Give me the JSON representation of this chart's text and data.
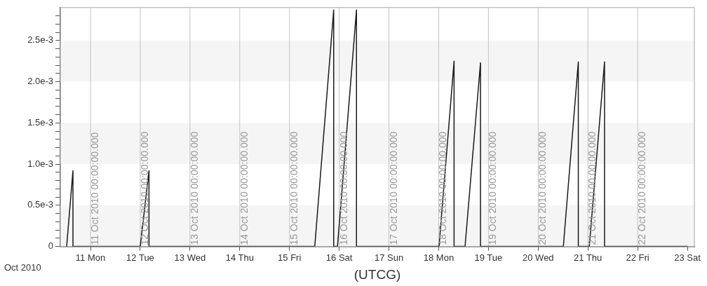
{
  "chart_data": {
    "type": "line",
    "xlabel": "(UTCG)",
    "annotations": [
      "Oct 2010"
    ],
    "x": [
      "2010-10-10T12:29",
      "2010-10-10T15:32",
      "2010-10-10T15:32",
      "2010-10-12T00:00",
      "2010-10-12T04:13",
      "2010-10-12T04:13",
      "2010-10-15T12:12",
      "2010-10-15T21:20",
      "2010-10-15T21:20",
      "2010-10-15T23:10",
      "2010-10-16T08:20",
      "2010-10-16T08:20",
      "2010-10-18T00:10",
      "2010-10-18T07:25",
      "2010-10-18T07:25",
      "2010-10-18T12:43",
      "2010-10-18T20:10",
      "2010-10-18T20:10",
      "2010-10-20T12:09",
      "2010-10-20T19:22",
      "2010-10-20T19:22",
      "2010-10-21T00:40",
      "2010-10-21T08:01",
      "2010-10-21T08:01",
      "2010-10-23T00:00"
    ],
    "series": [
      {
        "color": "#1a1a1a",
        "values": [
          0,
          0.00092,
          0,
          0,
          0.00092,
          0,
          0,
          0.00287,
          0,
          0,
          0.00287,
          0,
          0,
          0.00225,
          0,
          0,
          0.00223,
          0,
          0,
          0.00224,
          0,
          0,
          0.00224,
          0,
          0
        ]
      }
    ],
    "xlim": [
      "2010-10-10T09:26",
      "2010-10-23T03:22"
    ],
    "xticks": [
      {
        "value": "2010-10-11",
        "label": "11 Mon"
      },
      {
        "value": "2010-10-12",
        "label": "12 Tue"
      },
      {
        "value": "2010-10-13",
        "label": "13 Wed"
      },
      {
        "value": "2010-10-14",
        "label": "14 Thu"
      },
      {
        "value": "2010-10-15",
        "label": "15 Fri"
      },
      {
        "value": "2010-10-16",
        "label": "16 Sat"
      },
      {
        "value": "2010-10-17",
        "label": "17 Sun"
      },
      {
        "value": "2010-10-18",
        "label": "18 Mon"
      },
      {
        "value": "2010-10-19",
        "label": "19 Tue"
      },
      {
        "value": "2010-10-20",
        "label": "20 Wed"
      },
      {
        "value": "2010-10-21",
        "label": "21 Thu"
      },
      {
        "value": "2010-10-22",
        "label": "22 Fri"
      },
      {
        "value": "2010-10-23",
        "label": "23 Sat"
      }
    ],
    "ylim": [
      0,
      0.0029
    ],
    "yticks": [
      0,
      {
        "value": 0.0001,
        "label": null
      },
      {
        "value": 0.0002,
        "label": null
      },
      {
        "value": 0.0003,
        "label": null
      },
      {
        "value": 0.0004,
        "label": null
      },
      {
        "value": 0.0005,
        "label": "0.5e-3"
      },
      {
        "value": 0.0006,
        "label": null
      },
      {
        "value": 0.0007,
        "label": null
      },
      {
        "value": 0.0008,
        "label": null
      },
      {
        "value": 0.0009,
        "label": null
      },
      {
        "value": 0.001,
        "label": "1.0e-3"
      },
      {
        "value": 0.0011,
        "label": null
      },
      {
        "value": 0.0012,
        "label": null
      },
      {
        "value": 0.0013,
        "label": null
      },
      {
        "value": 0.0014,
        "label": null
      },
      {
        "value": 0.0015,
        "label": "1.5e-3"
      },
      {
        "value": 0.0016,
        "label": null
      },
      {
        "value": 0.0017,
        "label": null
      },
      {
        "value": 0.0018,
        "label": null
      },
      {
        "value": 0.0019,
        "label": null
      },
      {
        "value": 0.002,
        "label": "2.0e-3"
      },
      {
        "value": 0.0021,
        "label": null
      },
      {
        "value": 0.0022,
        "label": null
      },
      {
        "value": 0.0023,
        "label": null
      },
      {
        "value": 0.0024,
        "label": null
      },
      {
        "value": 0.0025,
        "label": "2.5e-3"
      },
      {
        "value": 0.0026,
        "label": null
      },
      {
        "value": 0.0027,
        "label": null
      },
      {
        "value": 0.0028,
        "label": null
      }
    ],
    "ref_lines": [
      {
        "axis": "x",
        "value": "2010-10-11",
        "label": "11 Oct 2010 00:00:00.000"
      },
      {
        "axis": "x",
        "value": "2010-10-12",
        "label": "12 Oct 2010 00:00:00.000"
      },
      {
        "axis": "x",
        "value": "2010-10-13",
        "label": "13 Oct 2010 00:00:00.000"
      },
      {
        "axis": "x",
        "value": "2010-10-14",
        "label": "14 Oct 2010 00:00:00.000"
      },
      {
        "axis": "x",
        "value": "2010-10-15",
        "label": "15 Oct 2010 00:00:00.000"
      },
      {
        "axis": "x",
        "value": "2010-10-16",
        "label": "16 Oct 2010 00:00:00.000"
      },
      {
        "axis": "x",
        "value": "2010-10-17",
        "label": "17 Oct 2010 00:00:00.000"
      },
      {
        "axis": "x",
        "value": "2010-10-18",
        "label": "18 Oct 2010 00:00:00.000"
      },
      {
        "axis": "x",
        "value": "2010-10-19",
        "label": "19 Oct 2010 00:00:00.000"
      },
      {
        "axis": "x",
        "value": "2010-10-20",
        "label": "20 Oct 2010 00:00:00.000"
      },
      {
        "axis": "x",
        "value": "2010-10-21",
        "label": "21 Oct 2010 00:00:00.000"
      },
      {
        "axis": "x",
        "value": "2010-10-22",
        "label": "22 Oct 2010 00:00:00.000"
      }
    ],
    "bands": [
      {
        "axis": "y",
        "from": 0,
        "to": 0.0005,
        "color": "#f5f5f5"
      },
      {
        "axis": "y",
        "from": 0.001,
        "to": 0.0015,
        "color": "#f5f5f5"
      },
      {
        "axis": "y",
        "from": 0.002,
        "to": 0.0025,
        "color": "#f5f5f5"
      }
    ],
    "grid": false,
    "legend": false,
    "marker": "none",
    "line_style": "solid"
  }
}
